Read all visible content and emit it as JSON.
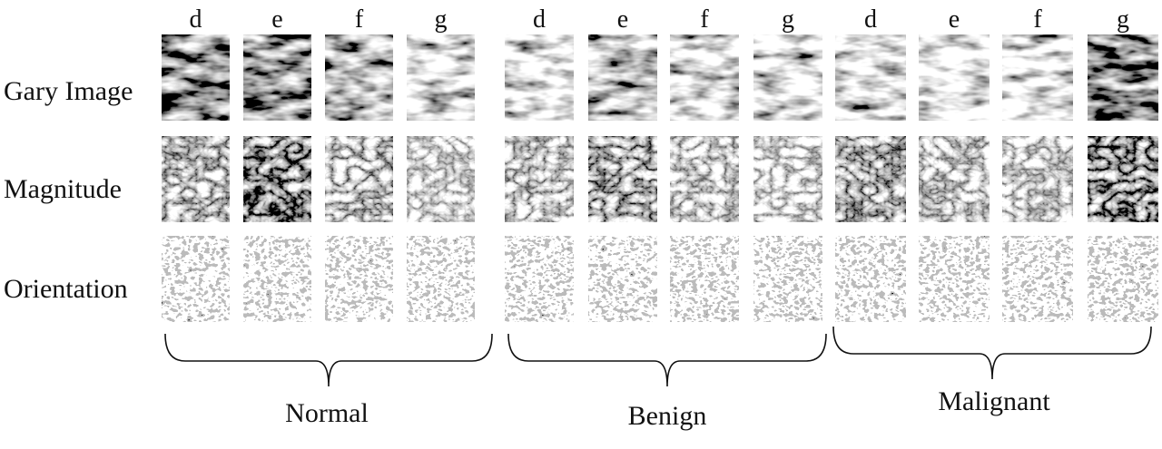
{
  "rows": [
    "Gary Image",
    "Magnitude",
    "Orientation"
  ],
  "groups": [
    {
      "label": "Normal",
      "columns": [
        "d",
        "e",
        "f",
        "g"
      ]
    },
    {
      "label": "Benign",
      "columns": [
        "d",
        "e",
        "f",
        "g"
      ]
    },
    {
      "label": "Malignant",
      "columns": [
        "d",
        "e",
        "f",
        "g"
      ]
    }
  ]
}
